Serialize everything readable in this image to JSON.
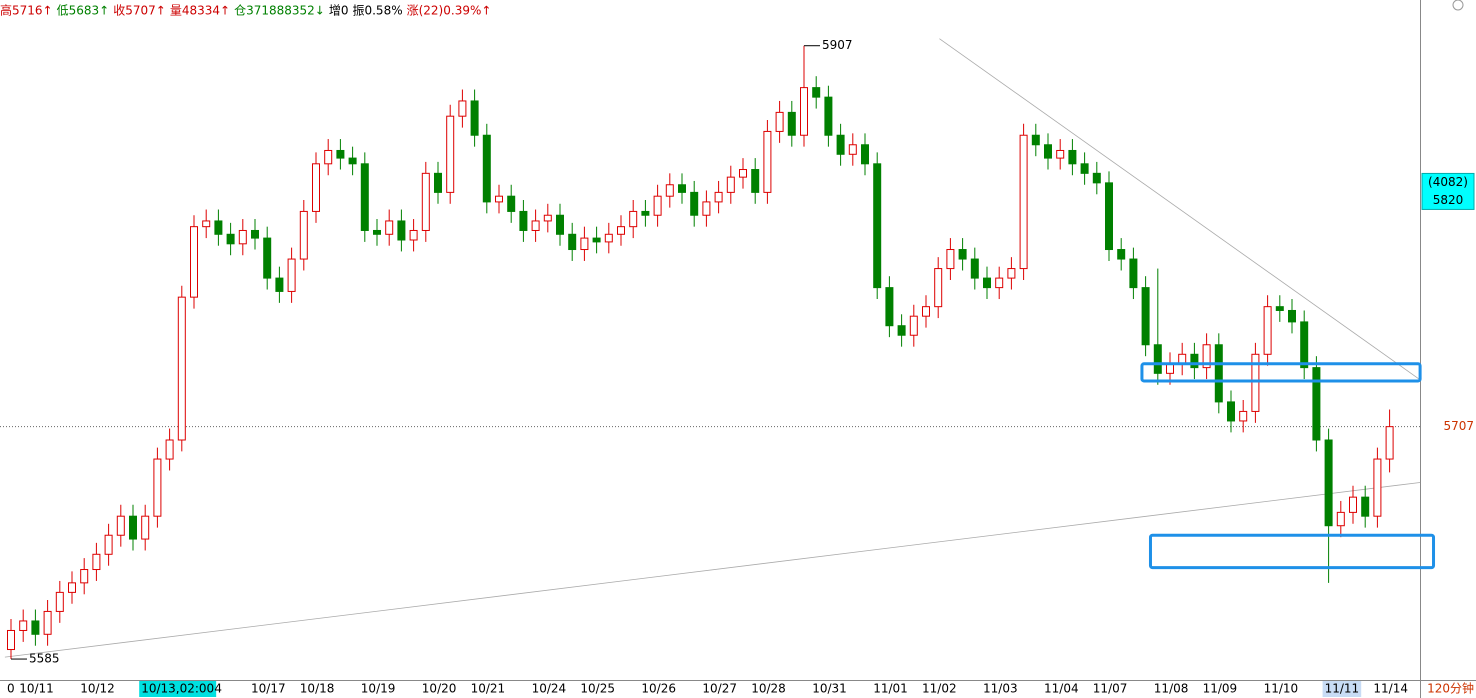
{
  "chart_data": {
    "type": "candlestick",
    "header": [
      {
        "text": "高5716↑",
        "color": "#cc0000"
      },
      {
        "text": "低5683↑",
        "color": "#008000"
      },
      {
        "text": "收5707↑",
        "color": "#cc0000"
      },
      {
        "text": "量48334↑",
        "color": "#cc0000"
      },
      {
        "text": "仓371888352↓",
        "color": "#008000"
      },
      {
        "text": "增0",
        "color": "#000000"
      },
      {
        "text": "振0.58%",
        "color": "#000000"
      },
      {
        "text": "涨(22)0.39%↑",
        "color": "#cc0000"
      }
    ],
    "period": "120分钟",
    "categories": [
      "0",
      "10/11",
      null,
      null,
      null,
      null,
      "10/12",
      null,
      null,
      null,
      null,
      "10/13,02:00",
      null,
      null,
      null,
      null,
      null,
      "4",
      null,
      null,
      "10/17",
      null,
      null,
      null,
      "10/18",
      null,
      null,
      null,
      null,
      "10/19",
      null,
      null,
      null,
      null,
      "10/20",
      null,
      null,
      null,
      "10/21",
      null,
      null,
      null,
      null,
      "10/24",
      null,
      null,
      null,
      "10/25",
      null,
      null,
      null,
      null,
      "10/26",
      null,
      null,
      null,
      null,
      "10/27",
      null,
      null,
      null,
      "10/28",
      null,
      null,
      null,
      null,
      "10/31",
      null,
      null,
      null,
      null,
      "11/01",
      null,
      null,
      null,
      "11/02",
      null,
      null,
      null,
      null,
      "11/03",
      null,
      null,
      null,
      null,
      "11/04",
      null,
      null,
      null,
      "11/07",
      null,
      null,
      null,
      null,
      "11/08",
      null,
      null,
      null,
      "11/09",
      null,
      null,
      null,
      null,
      "11/10",
      null,
      null,
      null,
      null,
      "11/11",
      null,
      null,
      null,
      "11/14",
      null
    ],
    "highlight": [
      11,
      108
    ],
    "open": [
      5590,
      5600,
      5605,
      5598,
      5610,
      5620,
      5625,
      5632,
      5640,
      5650,
      5660,
      5648,
      5660,
      5690,
      5700,
      5775,
      5812,
      5815,
      5808,
      5803,
      5810,
      5806,
      5785,
      5778,
      5795,
      5820,
      5845,
      5852,
      5848,
      5845,
      5810,
      5808,
      5815,
      5805,
      5810,
      5840,
      5830,
      5870,
      5878,
      5860,
      5825,
      5828,
      5820,
      5810,
      5815,
      5818,
      5808,
      5800,
      5806,
      5804,
      5808,
      5812,
      5820,
      5818,
      5828,
      5834,
      5830,
      5818,
      5825,
      5830,
      5838,
      5842,
      5830,
      5862,
      5872,
      5860,
      5885,
      5880,
      5860,
      5850,
      5855,
      5845,
      5780,
      5760,
      5755,
      5765,
      5770,
      5790,
      5800,
      5795,
      5785,
      5780,
      5785,
      5790,
      5860,
      5855,
      5848,
      5852,
      5845,
      5840,
      5835,
      5800,
      5795,
      5780,
      5750,
      5735,
      5740,
      5745,
      5738,
      5750,
      5720,
      5710,
      5715,
      5745,
      5770,
      5768,
      5762,
      5738,
      5700,
      5655,
      5662,
      5670,
      5660,
      5690
    ],
    "high": [
      5606,
      5611,
      5611,
      5616,
      5626,
      5631,
      5638,
      5646,
      5656,
      5666,
      5666,
      5666,
      5696,
      5706,
      5781,
      5818,
      5821,
      5821,
      5814,
      5816,
      5816,
      5812,
      5791,
      5801,
      5826,
      5851,
      5858,
      5858,
      5854,
      5851,
      5816,
      5821,
      5821,
      5816,
      5846,
      5846,
      5876,
      5884,
      5884,
      5866,
      5834,
      5834,
      5826,
      5821,
      5824,
      5824,
      5814,
      5812,
      5812,
      5814,
      5818,
      5826,
      5826,
      5834,
      5840,
      5840,
      5836,
      5831,
      5836,
      5844,
      5848,
      5848,
      5868,
      5878,
      5878,
      5907,
      5891,
      5886,
      5866,
      5861,
      5861,
      5851,
      5786,
      5766,
      5771,
      5776,
      5796,
      5806,
      5806,
      5801,
      5791,
      5791,
      5796,
      5866,
      5866,
      5861,
      5858,
      5858,
      5851,
      5846,
      5841,
      5806,
      5801,
      5786,
      5790,
      5746,
      5751,
      5751,
      5756,
      5756,
      5726,
      5721,
      5751,
      5776,
      5776,
      5774,
      5768,
      5744,
      5706,
      5668,
      5676,
      5676,
      5696,
      5716
    ],
    "low": [
      5585,
      5594,
      5592,
      5592,
      5604,
      5614,
      5619,
      5626,
      5634,
      5644,
      5642,
      5642,
      5654,
      5684,
      5694,
      5769,
      5806,
      5802,
      5797,
      5797,
      5800,
      5779,
      5772,
      5772,
      5789,
      5814,
      5839,
      5842,
      5839,
      5804,
      5802,
      5802,
      5799,
      5799,
      5804,
      5824,
      5824,
      5864,
      5854,
      5819,
      5819,
      5814,
      5804,
      5804,
      5809,
      5802,
      5794,
      5794,
      5798,
      5798,
      5802,
      5806,
      5812,
      5812,
      5822,
      5824,
      5812,
      5812,
      5819,
      5824,
      5832,
      5824,
      5824,
      5856,
      5854,
      5854,
      5874,
      5854,
      5844,
      5844,
      5839,
      5774,
      5754,
      5749,
      5749,
      5759,
      5764,
      5784,
      5789,
      5779,
      5774,
      5774,
      5779,
      5784,
      5849,
      5842,
      5842,
      5839,
      5834,
      5829,
      5794,
      5789,
      5774,
      5744,
      5729,
      5729,
      5734,
      5732,
      5732,
      5714,
      5704,
      5704,
      5709,
      5739,
      5762,
      5756,
      5732,
      5694,
      5625,
      5649,
      5656,
      5654,
      5654,
      5683
    ],
    "close": [
      5600,
      5605,
      5598,
      5610,
      5620,
      5625,
      5632,
      5640,
      5650,
      5660,
      5648,
      5660,
      5690,
      5700,
      5775,
      5812,
      5815,
      5808,
      5803,
      5810,
      5806,
      5785,
      5778,
      5795,
      5820,
      5845,
      5852,
      5848,
      5845,
      5810,
      5808,
      5815,
      5805,
      5810,
      5840,
      5830,
      5870,
      5878,
      5860,
      5825,
      5828,
      5820,
      5810,
      5815,
      5818,
      5808,
      5800,
      5806,
      5804,
      5808,
      5812,
      5820,
      5818,
      5828,
      5834,
      5830,
      5818,
      5825,
      5830,
      5838,
      5842,
      5830,
      5862,
      5872,
      5860,
      5885,
      5880,
      5860,
      5850,
      5855,
      5845,
      5780,
      5760,
      5755,
      5765,
      5770,
      5790,
      5800,
      5795,
      5785,
      5780,
      5785,
      5790,
      5860,
      5855,
      5848,
      5852,
      5845,
      5840,
      5835,
      5800,
      5795,
      5780,
      5750,
      5735,
      5740,
      5745,
      5738,
      5750,
      5720,
      5710,
      5715,
      5745,
      5770,
      5768,
      5762,
      5738,
      5700,
      5655,
      5662,
      5670,
      5660,
      5690,
      5707
    ],
    "up_color": "#dd0000",
    "down_color": "#008000",
    "ylim": [
      5574,
      5931
    ],
    "max_label": 5907,
    "min_label": 5585,
    "last_price": 5707,
    "cursor": {
      "label": "(4082)",
      "price": 5820
    },
    "trendlines": [
      {
        "from": [
          76.1,
          5910.7
        ],
        "to": [
          115.5,
          5731.6
        ]
      },
      {
        "from": [
          -0.5,
          5586
        ],
        "to": [
          115.5,
          5677.7
        ]
      }
    ],
    "boxes": [
      {
        "x": [
          92.7,
          115.5
        ],
        "y": [
          5731,
          5740
        ]
      },
      {
        "x": [
          93.4,
          116.6
        ],
        "y": [
          5633,
          5650
        ]
      }
    ]
  }
}
